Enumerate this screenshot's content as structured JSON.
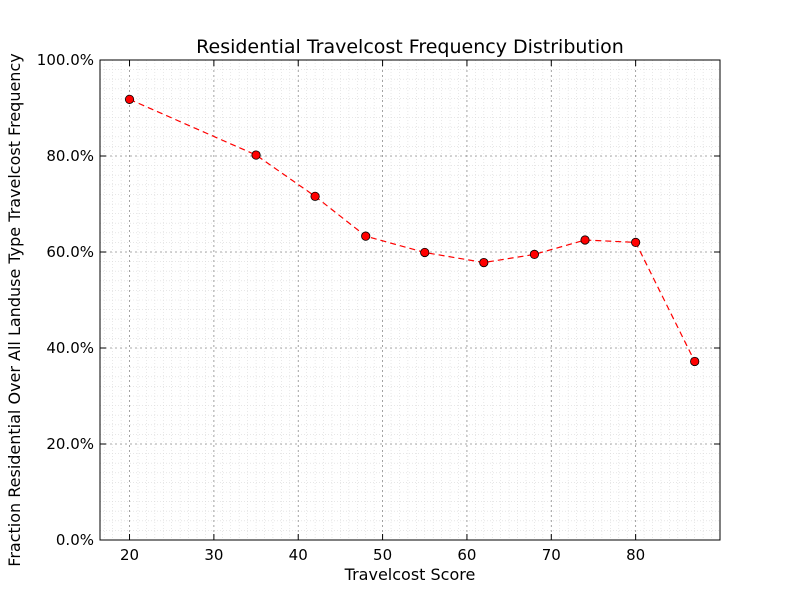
{
  "chart_data": {
    "type": "line",
    "title": "Residential Travelcost Frequency Distribution",
    "xlabel": "Travelcost Score",
    "ylabel": "Fraction Residential Over All Landuse Type Travelcost Frequency",
    "xlim": [
      16.5,
      90
    ],
    "ylim": [
      0,
      100
    ],
    "x_ticks": [
      20,
      30,
      40,
      50,
      60,
      70,
      80
    ],
    "x_tick_labels": [
      "20",
      "30",
      "40",
      "50",
      "60",
      "70",
      "80"
    ],
    "y_ticks": [
      0,
      20,
      40,
      60,
      80,
      100
    ],
    "y_tick_labels": [
      "0.0%",
      "20.0%",
      "40.0%",
      "60.0%",
      "80.0%",
      "100.0%"
    ],
    "grid": true,
    "series": [
      {
        "x": [
          20,
          35,
          42,
          48,
          55,
          62,
          68,
          74,
          80,
          87
        ],
        "values": [
          91.8,
          80.2,
          71.6,
          63.3,
          59.9,
          57.8,
          59.5,
          62.5,
          62.0,
          37.2
        ],
        "line_color": "#ff0000",
        "marker_color": "#ff0000",
        "line_style": "dashed",
        "marker": "circle"
      }
    ]
  }
}
